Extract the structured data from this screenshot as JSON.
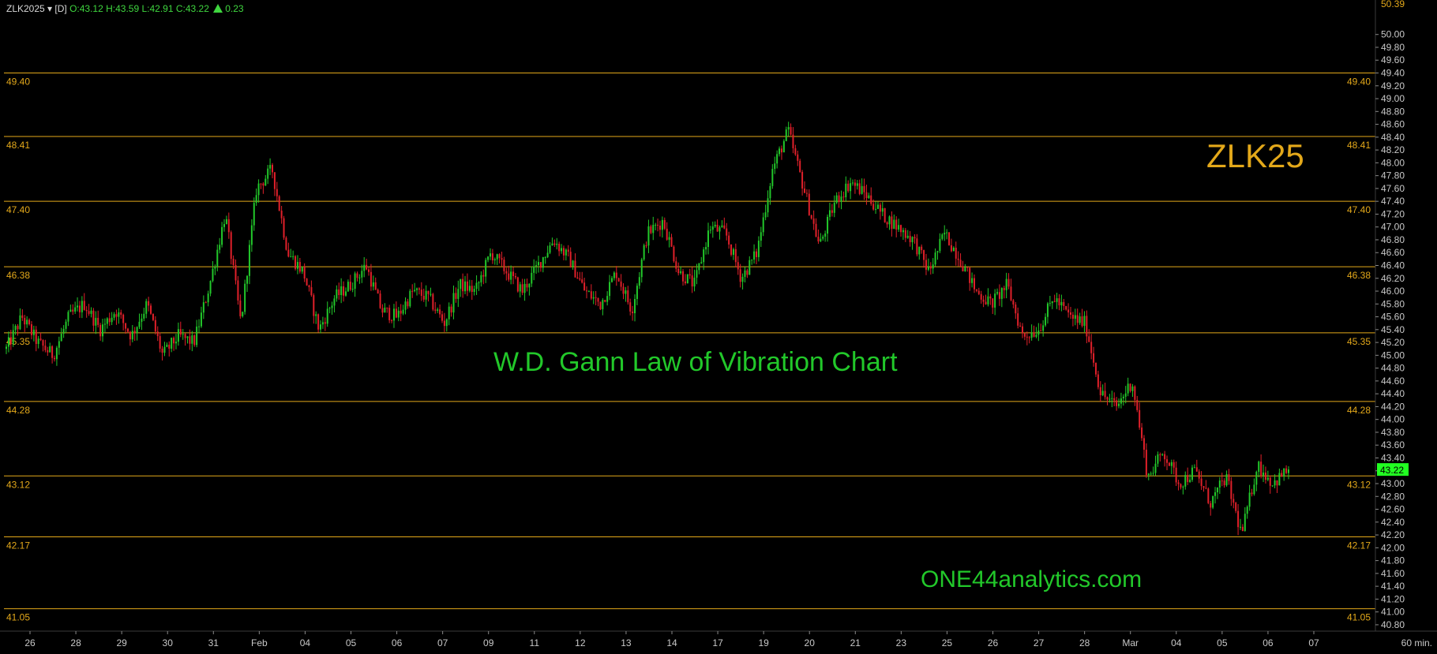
{
  "header": {
    "symbol": "ZLK2025 ▾ [D]",
    "ohlc": "O:43.12 H:43.59 L:42.91 C:43.22",
    "change": "0.23",
    "change_icon": "up-triangle-icon"
  },
  "overlay": {
    "chart_symbol": "ZLK25",
    "title": "W.D. Gann Law of Vibration Chart",
    "website": "ONE44analytics.com"
  },
  "colors": {
    "background": "#000000",
    "up": "#22c82a",
    "down": "#e0202a",
    "gann": "#e3a81a",
    "last_price_bg": "#22ff22",
    "grid_text": "#c8c8c8"
  },
  "axis": {
    "time_unit": "60 min.",
    "top_price_label": "50.39",
    "last_price": "43.22"
  },
  "chart_data": {
    "type": "candlestick",
    "ylim": [
      40.75,
      50.39
    ],
    "y_ticks": [
      "50.00",
      "49.80",
      "49.60",
      "49.40",
      "49.20",
      "49.00",
      "48.80",
      "48.60",
      "48.40",
      "48.20",
      "48.00",
      "47.80",
      "47.60",
      "47.40",
      "47.20",
      "47.00",
      "46.80",
      "46.60",
      "46.40",
      "46.20",
      "46.00",
      "45.80",
      "45.60",
      "45.40",
      "45.20",
      "45.00",
      "44.80",
      "44.60",
      "44.40",
      "44.20",
      "44.00",
      "43.80",
      "43.60",
      "43.40",
      "43.20",
      "43.00",
      "42.80",
      "42.60",
      "42.40",
      "42.20",
      "42.00",
      "41.80",
      "41.60",
      "41.40",
      "41.20",
      "41.00",
      "40.80"
    ],
    "x_labels": [
      "26",
      "28",
      "29",
      "30",
      "31",
      "Feb",
      "04",
      "05",
      "06",
      "07",
      "09",
      "11",
      "12",
      "13",
      "14",
      "17",
      "19",
      "20",
      "21",
      "23",
      "25",
      "26",
      "27",
      "28",
      "Mar",
      "04",
      "05",
      "06",
      "07"
    ],
    "gann_levels": [
      49.4,
      48.41,
      47.4,
      46.38,
      45.35,
      44.28,
      43.12,
      42.17,
      41.05
    ],
    "gann_labels": [
      "49.40",
      "48.41",
      "47.40",
      "46.38",
      "45.35",
      "44.28",
      "43.12",
      "42.17",
      "41.05"
    ],
    "close_path": [
      45.1,
      45.6,
      45.2,
      45.0,
      45.6,
      45.8,
      45.4,
      45.7,
      45.3,
      45.8,
      45.0,
      45.3,
      45.2,
      46.1,
      47.2,
      45.5,
      47.6,
      47.9,
      46.6,
      46.3,
      45.4,
      45.9,
      46.1,
      46.4,
      45.7,
      45.6,
      46.0,
      45.9,
      45.5,
      46.1,
      46.0,
      46.6,
      46.3,
      46.0,
      46.4,
      46.8,
      46.5,
      46.0,
      45.8,
      46.3,
      45.7,
      46.9,
      47.1,
      46.3,
      46.1,
      47.0,
      46.9,
      46.2,
      46.6,
      47.9,
      48.5,
      47.6,
      46.7,
      47.4,
      47.7,
      47.5,
      47.2,
      47.0,
      46.8,
      46.3,
      46.9,
      46.5,
      46.0,
      45.8,
      46.1,
      45.3,
      45.4,
      45.9,
      45.6,
      45.5,
      44.4,
      44.2,
      44.6,
      43.1,
      43.5,
      43.0,
      43.2,
      42.7,
      43.1,
      42.2,
      43.3,
      43.0,
      43.22
    ]
  }
}
